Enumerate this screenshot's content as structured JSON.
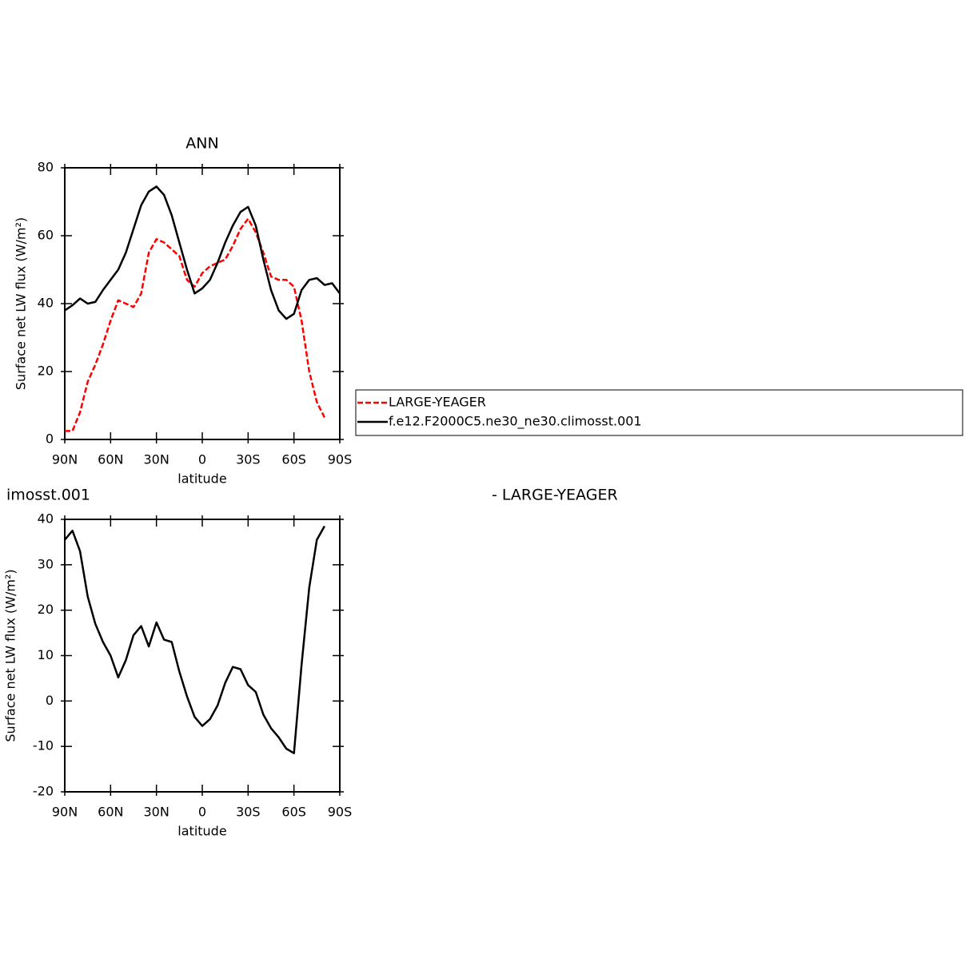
{
  "chart_data": [
    {
      "type": "line",
      "title": "ANN",
      "xlabel": "latitude",
      "ylabel": "Surface net LW flux (W/m²)",
      "x": [
        90,
        85,
        80,
        75,
        70,
        65,
        60,
        55,
        50,
        45,
        40,
        35,
        30,
        25,
        20,
        15,
        10,
        5,
        0,
        -5,
        -10,
        -15,
        -20,
        -25,
        -30,
        -35,
        -40,
        -45,
        -50,
        -55,
        -60,
        -65,
        -70,
        -75,
        -80,
        -85,
        -90
      ],
      "xlim": [
        90,
        -90
      ],
      "xticks": [
        {
          "value": 90,
          "label": "90N"
        },
        {
          "value": 60,
          "label": "60N"
        },
        {
          "value": 30,
          "label": "30N"
        },
        0,
        {
          "value": -30,
          "label": "30S"
        },
        {
          "value": -60,
          "label": "60S"
        },
        {
          "value": -90,
          "label": "90S"
        }
      ],
      "ylim": [
        0,
        80
      ],
      "yticks": [
        0,
        20,
        40,
        60,
        80
      ],
      "series": [
        {
          "name": "LARGE-YEAGER",
          "color": "#ff0000",
          "linestyle": "dashed",
          "values": [
            2.5,
            2.5,
            8,
            17,
            22,
            28,
            35,
            41,
            40,
            39,
            43,
            55,
            59,
            58,
            56,
            54,
            47,
            45,
            49,
            51,
            52,
            53,
            57,
            62,
            65,
            61,
            55,
            48,
            47,
            47,
            45,
            35,
            20,
            11,
            6.5,
            null,
            null
          ]
        },
        {
          "name": "f.e12.F2000C5.ne30_ne30.climosst.001",
          "color": "#000000",
          "linestyle": "solid",
          "values": [
            38,
            39.5,
            41.5,
            40,
            40.5,
            44,
            47,
            50,
            55,
            62,
            69,
            73,
            74.5,
            72,
            66,
            58,
            50,
            43,
            44.5,
            47,
            52,
            58,
            63,
            67,
            68.5,
            63,
            53,
            44,
            38,
            35.5,
            37,
            44,
            47,
            47.5,
            45.5,
            46,
            43
          ]
        }
      ]
    },
    {
      "type": "line",
      "title": "imosst.001",
      "subtitle": "- LARGE-YEAGER",
      "xlabel": "latitude",
      "ylabel": "Surface net LW flux (W/m²)",
      "x": [
        90,
        85,
        80,
        75,
        70,
        65,
        60,
        55,
        50,
        45,
        40,
        35,
        30,
        25,
        20,
        15,
        10,
        5,
        0,
        -5,
        -10,
        -15,
        -20,
        -25,
        -30,
        -35,
        -40,
        -45,
        -50,
        -55,
        -60,
        -65,
        -70,
        -75,
        -80,
        -85,
        -90
      ],
      "xlim": [
        90,
        -90
      ],
      "xticks": [
        {
          "value": 90,
          "label": "90N"
        },
        {
          "value": 60,
          "label": "60N"
        },
        {
          "value": 30,
          "label": "30N"
        },
        0,
        {
          "value": -30,
          "label": "30S"
        },
        {
          "value": -60,
          "label": "60S"
        },
        {
          "value": -90,
          "label": "90S"
        }
      ],
      "ylim": [
        -20,
        40
      ],
      "yticks": [
        -20,
        -10,
        0,
        10,
        20,
        30,
        40
      ],
      "series": [
        {
          "color": "#000000",
          "linestyle": "solid",
          "values": [
            35.5,
            37.5,
            33,
            23,
            17,
            13,
            10,
            5.2,
            9,
            14.5,
            16.5,
            12,
            17.3,
            13.5,
            13,
            6.5,
            1,
            -3.5,
            -5.5,
            -4,
            -1,
            4,
            7.5,
            7,
            3.5,
            2,
            -3,
            -6,
            -8,
            -10.5,
            -11.5,
            8,
            25,
            35.5,
            38.5,
            null,
            null
          ]
        }
      ]
    }
  ]
}
